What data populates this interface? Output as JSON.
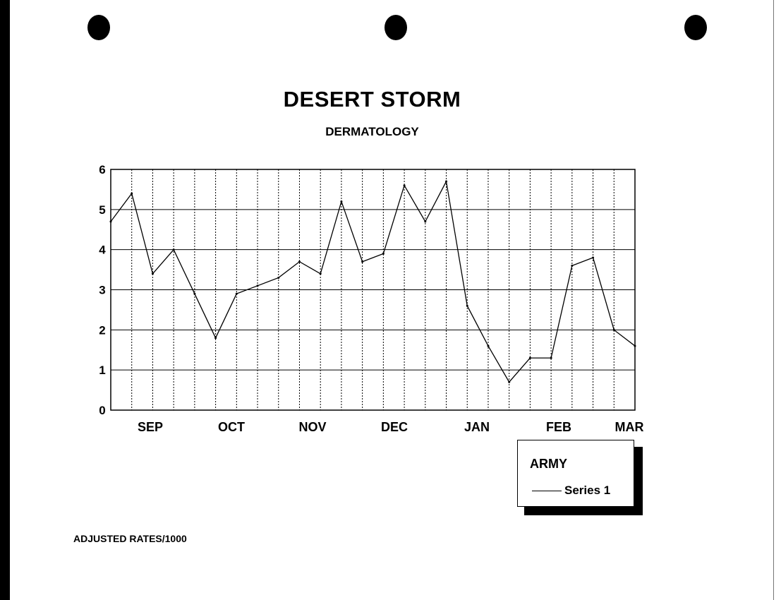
{
  "title": "DESERT STORM",
  "subtitle": "DERMATOLOGY",
  "footnote": "ADJUSTED RATES/1000",
  "legend": {
    "title": "ARMY",
    "series_label": "Series 1"
  },
  "chart_data": {
    "type": "line",
    "title": "DESERT STORM",
    "subtitle": "DERMATOLOGY",
    "xlabel": "",
    "ylabel": "",
    "month_labels": [
      "SEP",
      "OCT",
      "NOV",
      "DEC",
      "JAN",
      "FEB",
      "MAR"
    ],
    "y_ticks": [
      "0",
      "1",
      "2",
      "3",
      "4",
      "5",
      "6"
    ],
    "ylim": [
      0,
      6
    ],
    "grid": true,
    "legend_position": "bottom-right",
    "series": [
      {
        "name": "Series 1",
        "values": [
          4.7,
          5.4,
          3.4,
          4.0,
          2.9,
          1.8,
          2.9,
          3.1,
          3.3,
          3.7,
          3.4,
          5.2,
          3.7,
          3.9,
          5.6,
          4.7,
          5.7,
          2.6,
          1.6,
          0.7,
          1.3,
          1.3,
          3.6,
          3.8,
          2.0,
          1.6
        ]
      }
    ]
  }
}
